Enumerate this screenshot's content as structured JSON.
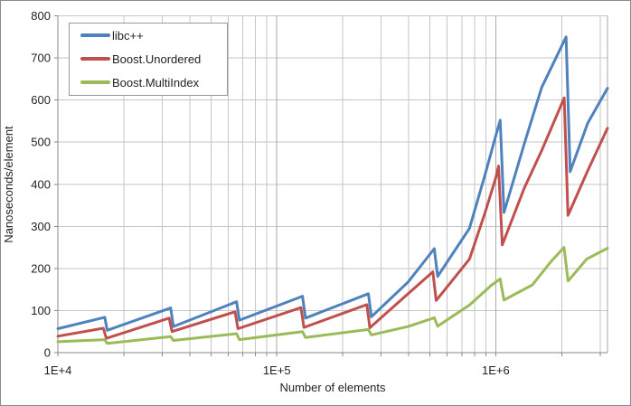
{
  "chart_data": {
    "type": "line",
    "title": "",
    "xlabel": "Number of elements",
    "ylabel": "Nanoseconds/element",
    "x_scale": "log10",
    "x_range": [
      10000,
      3240000
    ],
    "ylim": [
      0,
      800
    ],
    "y_tick_step": 100,
    "grid": true,
    "legend_position": "top-left",
    "x_decade_ticks": [
      {
        "value": 10000,
        "label": "1E+4"
      },
      {
        "value": 100000,
        "label": "1E+5"
      },
      {
        "value": 1000000,
        "label": "1E+6"
      }
    ],
    "series": [
      {
        "name": "libc++",
        "color": "#4F81BD",
        "points": [
          [
            10000,
            57
          ],
          [
            16384,
            84
          ],
          [
            16800,
            53
          ],
          [
            32768,
            106
          ],
          [
            33700,
            62
          ],
          [
            65536,
            121
          ],
          [
            67500,
            77
          ],
          [
            131072,
            134
          ],
          [
            135200,
            82
          ],
          [
            262144,
            140
          ],
          [
            270400,
            85
          ],
          [
            398000,
            168
          ],
          [
            524288,
            247
          ],
          [
            543000,
            181
          ],
          [
            758600,
            295
          ],
          [
            891000,
            420
          ],
          [
            1000000,
            515
          ],
          [
            1048576,
            552
          ],
          [
            1091000,
            333
          ],
          [
            1349000,
            495
          ],
          [
            1622000,
            630
          ],
          [
            2097152,
            750
          ],
          [
            2188000,
            430
          ],
          [
            2630000,
            545
          ],
          [
            3240000,
            628
          ]
        ]
      },
      {
        "name": "Boost.Unordered",
        "color": "#C0504D",
        "points": [
          [
            10000,
            39
          ],
          [
            16130,
            58
          ],
          [
            16640,
            34
          ],
          [
            32240,
            82
          ],
          [
            33230,
            50
          ],
          [
            64450,
            97
          ],
          [
            66440,
            57
          ],
          [
            128900,
            107
          ],
          [
            133000,
            60
          ],
          [
            257800,
            114
          ],
          [
            266100,
            59
          ],
          [
            398000,
            140
          ],
          [
            516000,
            192
          ],
          [
            534600,
            124
          ],
          [
            758600,
            222
          ],
          [
            891000,
            330
          ],
          [
            1000000,
            415
          ],
          [
            1030000,
            443
          ],
          [
            1071600,
            256
          ],
          [
            1349000,
            390
          ],
          [
            1622000,
            480
          ],
          [
            2055000,
            605
          ],
          [
            2138000,
            326
          ],
          [
            2630000,
            432
          ],
          [
            3240000,
            533
          ]
        ]
      },
      {
        "name": "Boost.MultiIndex",
        "color": "#9BBB59",
        "points": [
          [
            10000,
            26
          ],
          [
            16384,
            31
          ],
          [
            16800,
            22
          ],
          [
            32768,
            38
          ],
          [
            33700,
            29
          ],
          [
            65536,
            45
          ],
          [
            67500,
            31
          ],
          [
            131072,
            50
          ],
          [
            135200,
            36
          ],
          [
            262144,
            55
          ],
          [
            270400,
            42
          ],
          [
            398000,
            62
          ],
          [
            524288,
            83
          ],
          [
            543000,
            63
          ],
          [
            758600,
            113
          ],
          [
            955000,
            160
          ],
          [
            1048576,
            175
          ],
          [
            1091000,
            125
          ],
          [
            1472000,
            161
          ],
          [
            1778000,
            215
          ],
          [
            2050000,
            250
          ],
          [
            2140000,
            170
          ],
          [
            2600000,
            222
          ],
          [
            3240000,
            248
          ]
        ]
      }
    ]
  },
  "style_colors": {
    "grid_minor": "#c6c6c6",
    "grid_major": "#a9a9a9",
    "axis": "#898989",
    "tick_text": "#1f1f1f"
  }
}
